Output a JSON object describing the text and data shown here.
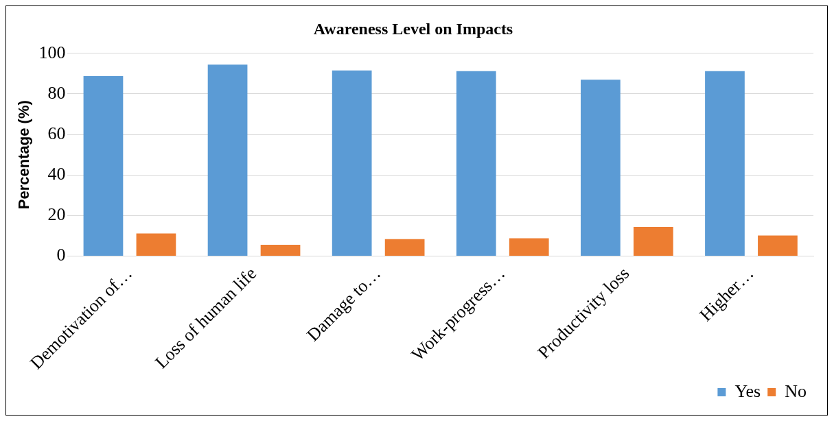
{
  "chart_data": {
    "type": "bar",
    "title": "Awareness Level on Impacts",
    "ylabel": "Percentage (%)",
    "categories": [
      "Demotivation of…",
      "Loss of human life",
      "Damage to…",
      "Work-progress…",
      "Productivity loss",
      "Higher…"
    ],
    "series": [
      {
        "name": "Yes",
        "color": "#5b9bd5",
        "values": [
          88.8,
          94.4,
          91.6,
          91.2,
          87,
          91.2
        ]
      },
      {
        "name": "No",
        "color": "#ed7d31",
        "values": [
          11.2,
          5.6,
          8.4,
          8.8,
          14.4,
          10.2
        ]
      }
    ],
    "ylim": [
      0,
      100
    ],
    "yticks": [
      0,
      20,
      40,
      60,
      80,
      100
    ],
    "grid": "y",
    "legend": "bottom right"
  }
}
